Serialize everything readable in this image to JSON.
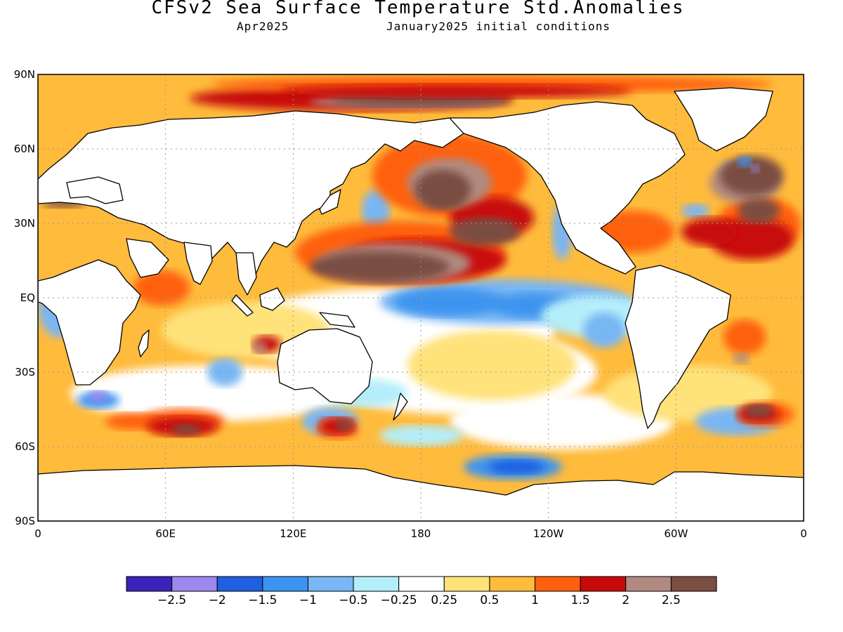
{
  "title": "CFSv2 Sea Surface Temperature Std.Anomalies",
  "subtitle_left": "Apr2025",
  "subtitle_right": "January2025 initial conditions",
  "lat_labels": [
    "90N",
    "60N",
    "30N",
    "EQ",
    "30S",
    "60S",
    "90S"
  ],
  "lon_labels": [
    "0",
    "60E",
    "120E",
    "180",
    "120W",
    "60W",
    "0"
  ],
  "colorbar": {
    "colors": [
      "#3b22b8",
      "#9c88ee",
      "#1f5fe0",
      "#3c94f0",
      "#78b6f4",
      "#b4eefa",
      "#ffffff",
      "#ffe27a",
      "#ffbb3c",
      "#ff6010",
      "#c80a0a",
      "#b08a80",
      "#7a4e42"
    ],
    "labels": [
      "−2.5",
      "−2",
      "−1.5",
      "−1",
      "−0.5",
      "−0.25",
      "0.25",
      "0.5",
      "1",
      "1.5",
      "2",
      "2.5"
    ]
  },
  "map_colors": {
    "land": "#ffffff",
    "coast": "#000000",
    "grid": "#9a9a9a"
  }
}
